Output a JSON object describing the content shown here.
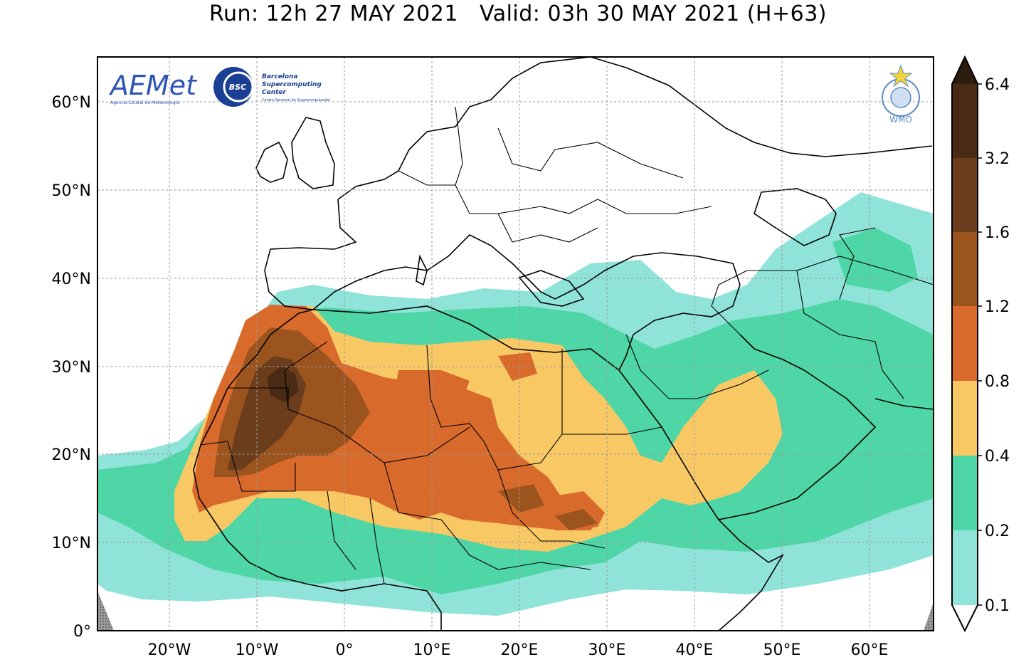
{
  "title": "Run: 12h 27 MAY 2021   Valid: 03h 30 MAY 2021 (H+63)",
  "map": {
    "lon_ticks": [
      "20°W",
      "10°W",
      "0°",
      "10°E",
      "20°E",
      "30°E",
      "40°E",
      "50°E",
      "60°E"
    ],
    "lat_ticks": [
      "60°N",
      "50°N",
      "40°N",
      "30°N",
      "20°N",
      "10°N",
      "0°"
    ],
    "extent": {
      "lon": [
        -28,
        67
      ],
      "lat": [
        0,
        65
      ]
    }
  },
  "logos": {
    "aemet": {
      "name": "AEMet",
      "subtitle": "Agencia Estatal de Meteorología"
    },
    "bsc": {
      "badge": "BSC",
      "lines": [
        "Barcelona",
        "Supercomputing",
        "Center"
      ],
      "subtitle": "Centro Nacional de Supercomputación"
    },
    "wmo": {
      "label": "WMO"
    }
  },
  "colorbar": {
    "levels": [
      "6.4",
      "3.2",
      "1.6",
      "1.2",
      "0.8",
      "0.4",
      "0.2",
      "0.1"
    ],
    "colors": [
      "#ffffff",
      "#8fe3d8",
      "#4fd6a6",
      "#f8c865",
      "#d86a2c",
      "#9c541f",
      "#6b3d1d",
      "#4a2a14",
      "#2c1c0e"
    ]
  }
}
